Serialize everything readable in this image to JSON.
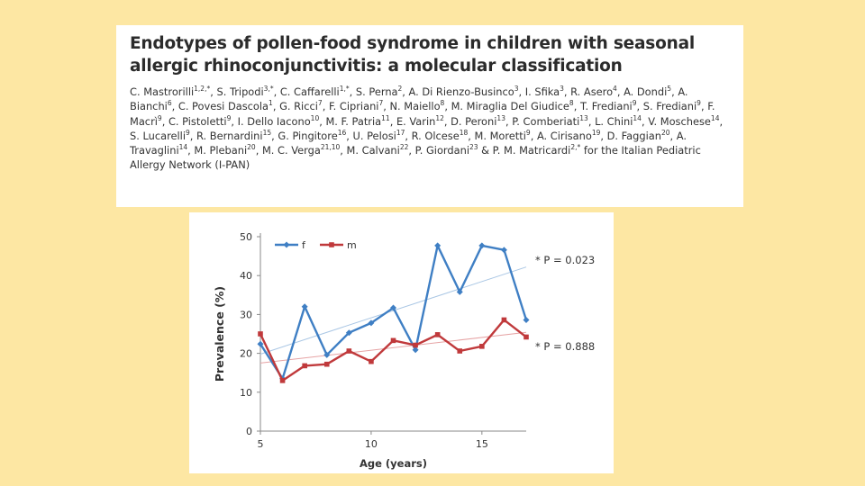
{
  "paper": {
    "title": "Endotypes of pollen-food syndrome in children with seasonal allergic rhinoconjunctivitis: a molecular classification",
    "authors": [
      {
        "name": "C. Mastrorilli",
        "aff": "1,2,*"
      },
      {
        "name": "S. Tripodi",
        "aff": "3,*"
      },
      {
        "name": "C. Caffarelli",
        "aff": "1,*"
      },
      {
        "name": "S. Perna",
        "aff": "2"
      },
      {
        "name": "A. Di Rienzo-Businco",
        "aff": "3"
      },
      {
        "name": "I. Sfika",
        "aff": "3"
      },
      {
        "name": "R. Asero",
        "aff": "4"
      },
      {
        "name": "A. Dondi",
        "aff": "5"
      },
      {
        "name": "A. Bianchi",
        "aff": "6"
      },
      {
        "name": "C. Povesi Dascola",
        "aff": "1"
      },
      {
        "name": "G. Ricci",
        "aff": "7"
      },
      {
        "name": "F. Cipriani",
        "aff": "7"
      },
      {
        "name": "N. Maiello",
        "aff": "8"
      },
      {
        "name": "M. Miraglia Del Giudice",
        "aff": "8"
      },
      {
        "name": "T. Frediani",
        "aff": "9"
      },
      {
        "name": "S. Frediani",
        "aff": "9"
      },
      {
        "name": "F. Macrì",
        "aff": "9"
      },
      {
        "name": "C. Pistoletti",
        "aff": "9"
      },
      {
        "name": "I. Dello Iacono",
        "aff": "10"
      },
      {
        "name": "M. F. Patria",
        "aff": "11"
      },
      {
        "name": "E. Varin",
        "aff": "12"
      },
      {
        "name": "D. Peroni",
        "aff": "13"
      },
      {
        "name": "P. Comberiati",
        "aff": "13"
      },
      {
        "name": "L. Chini",
        "aff": "14"
      },
      {
        "name": "V. Moschese",
        "aff": "14"
      },
      {
        "name": "S. Lucarelli",
        "aff": "9"
      },
      {
        "name": "R. Bernardini",
        "aff": "15"
      },
      {
        "name": "G. Pingitore",
        "aff": "16"
      },
      {
        "name": "U. Pelosi",
        "aff": "17"
      },
      {
        "name": "R. Olcese",
        "aff": "18"
      },
      {
        "name": "M. Moretti",
        "aff": "9"
      },
      {
        "name": "A. Cirisano",
        "aff": "19"
      },
      {
        "name": "D. Faggian",
        "aff": "20"
      },
      {
        "name": "A. Travaglini",
        "aff": "14"
      },
      {
        "name": "M. Plebani",
        "aff": "20"
      },
      {
        "name": "M. C. Verga",
        "aff": "21,10"
      },
      {
        "name": "M. Calvani",
        "aff": "22"
      },
      {
        "name": "P. Giordani",
        "aff": "23"
      },
      {
        "name": "P. M. Matricardi",
        "aff": "2,*"
      }
    ],
    "author_suffix": "for the Italian Pediatric Allergy Network (I-PAN)"
  },
  "chart_data": {
    "type": "line",
    "xlabel": "Age (years)",
    "ylabel": "Prevalence (%)",
    "xlim": [
      5,
      17
    ],
    "ylim": [
      0,
      50
    ],
    "xticks": [
      5,
      10,
      15
    ],
    "yticks": [
      0,
      10,
      20,
      30,
      40,
      50
    ],
    "grid": false,
    "legend_position": "top-left",
    "series": [
      {
        "name": "f",
        "color": "#3f7fc4",
        "marker": "diamond",
        "x": [
          5,
          6,
          7,
          8,
          9,
          10,
          11,
          12,
          13,
          14,
          15,
          16,
          17
        ],
        "values": [
          22.4,
          13.5,
          32,
          19.6,
          25.3,
          27.8,
          31.7,
          20.9,
          47.7,
          35.8,
          47.7,
          46.6,
          28.6
        ],
        "trend": {
          "start": 19.8,
          "end": 42.2,
          "color": "#a9c6e4"
        },
        "annotation": "* P = 0.023"
      },
      {
        "name": "m",
        "color": "#c0393b",
        "marker": "square",
        "x": [
          5,
          6,
          7,
          8,
          9,
          10,
          11,
          12,
          13,
          14,
          15,
          16,
          17
        ],
        "values": [
          25,
          13,
          16.8,
          17.2,
          20.6,
          17.9,
          23.3,
          22.1,
          24.8,
          20.6,
          21.8,
          28.6,
          24.2
        ],
        "trend": {
          "start": 17.5,
          "end": 25.4,
          "color": "#e6a3a4"
        },
        "annotation": "* P = 0.888"
      }
    ]
  }
}
